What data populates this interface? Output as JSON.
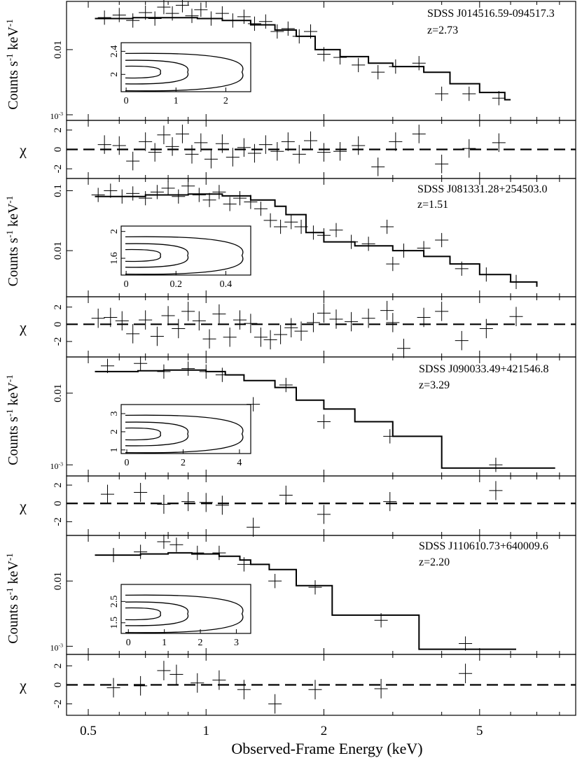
{
  "figure": {
    "xlabel": "Observed-Frame Energy (keV)",
    "xticks": [
      "0.5",
      "1",
      "2",
      "5"
    ],
    "spec_ylabel_main": "Counts s",
    "spec_ylabel_sup1": "-1",
    "spec_ylabel_mid": " keV",
    "spec_ylabel_sup2": "-1",
    "chi_ylabel": "χ",
    "exp_base": "10",
    "exp_sup": "-3"
  },
  "chart_data": [
    {
      "type": "line",
      "panel": "spectrum",
      "source": "SDSS J014516.59-094517.3",
      "redshift": "z=2.73",
      "xscale": "log",
      "yscale": "log",
      "xlim": [
        0.44,
        8.8
      ],
      "ylim": [
        0.00082,
        0.055
      ],
      "yticks": [
        {
          "v": 0.01,
          "label": "0.01"
        },
        {
          "v": 0.001,
          "label": "10^-3"
        }
      ],
      "model": [
        {
          "e": 0.52,
          "c": 0.03
        },
        {
          "e": 0.65,
          "c": 0.031
        },
        {
          "e": 0.8,
          "c": 0.031
        },
        {
          "e": 0.95,
          "c": 0.03
        },
        {
          "e": 1.1,
          "c": 0.028
        },
        {
          "e": 1.3,
          "c": 0.024
        },
        {
          "e": 1.5,
          "c": 0.02
        },
        {
          "e": 1.7,
          "c": 0.016
        },
        {
          "e": 1.9,
          "c": 0.01
        },
        {
          "e": 2.2,
          "c": 0.0078
        },
        {
          "e": 2.6,
          "c": 0.0062
        },
        {
          "e": 3.0,
          "c": 0.0055
        },
        {
          "e": 3.6,
          "c": 0.0045
        },
        {
          "e": 4.2,
          "c": 0.003
        },
        {
          "e": 5.0,
          "c": 0.0022
        },
        {
          "e": 5.8,
          "c": 0.0017
        },
        {
          "e": 6.0,
          "c": 0.0017
        }
      ],
      "points": [
        {
          "e": 0.55,
          "c": 0.031
        },
        {
          "e": 0.6,
          "c": 0.034
        },
        {
          "e": 0.65,
          "c": 0.028
        },
        {
          "e": 0.7,
          "c": 0.037
        },
        {
          "e": 0.74,
          "c": 0.03
        },
        {
          "e": 0.78,
          "c": 0.045
        },
        {
          "e": 0.82,
          "c": 0.036
        },
        {
          "e": 0.87,
          "c": 0.048
        },
        {
          "e": 0.92,
          "c": 0.033
        },
        {
          "e": 0.97,
          "c": 0.041
        },
        {
          "e": 1.03,
          "c": 0.03
        },
        {
          "e": 1.1,
          "c": 0.036
        },
        {
          "e": 1.17,
          "c": 0.028
        },
        {
          "e": 1.25,
          "c": 0.032
        },
        {
          "e": 1.33,
          "c": 0.025
        },
        {
          "e": 1.42,
          "c": 0.027
        },
        {
          "e": 1.52,
          "c": 0.019
        },
        {
          "e": 1.62,
          "c": 0.021
        },
        {
          "e": 1.73,
          "c": 0.016
        },
        {
          "e": 1.85,
          "c": 0.019
        },
        {
          "e": 2.0,
          "c": 0.0085
        },
        {
          "e": 2.2,
          "c": 0.0076
        },
        {
          "e": 2.45,
          "c": 0.0058
        },
        {
          "e": 2.75,
          "c": 0.0045
        },
        {
          "e": 3.05,
          "c": 0.0055
        },
        {
          "e": 3.5,
          "c": 0.0062
        },
        {
          "e": 4.0,
          "c": 0.0021
        },
        {
          "e": 4.7,
          "c": 0.0021
        },
        {
          "e": 5.6,
          "c": 0.0018
        }
      ],
      "inset": {
        "xlim": [
          -0.1,
          2.5
        ],
        "ylim": [
          1.7,
          2.55
        ],
        "xticks": [
          0,
          1,
          2
        ],
        "yticks": [
          2,
          2.4
        ]
      }
    },
    {
      "type": "scatter",
      "panel": "residuals",
      "source": "SDSS J014516.59-094517.3",
      "ylim": [
        -3.0,
        3.0
      ],
      "yticks": [
        2,
        0,
        -2
      ],
      "chi": [
        {
          "e": 0.55,
          "v": 0.5
        },
        {
          "e": 0.6,
          "v": 0.4
        },
        {
          "e": 0.65,
          "v": -1.2
        },
        {
          "e": 0.7,
          "v": 0.8
        },
        {
          "e": 0.74,
          "v": -0.3
        },
        {
          "e": 0.78,
          "v": 1.5
        },
        {
          "e": 0.82,
          "v": 0.3
        },
        {
          "e": 0.87,
          "v": 1.6
        },
        {
          "e": 0.92,
          "v": -0.5
        },
        {
          "e": 0.97,
          "v": 0.7
        },
        {
          "e": 1.03,
          "v": -1.0
        },
        {
          "e": 1.1,
          "v": 0.6
        },
        {
          "e": 1.17,
          "v": -0.8
        },
        {
          "e": 1.25,
          "v": 0.2
        },
        {
          "e": 1.33,
          "v": -0.4
        },
        {
          "e": 1.42,
          "v": 0.5
        },
        {
          "e": 1.52,
          "v": -0.2
        },
        {
          "e": 1.62,
          "v": 0.8
        },
        {
          "e": 1.73,
          "v": -0.5
        },
        {
          "e": 1.85,
          "v": 0.9
        },
        {
          "e": 2.0,
          "v": -0.3
        },
        {
          "e": 2.2,
          "v": -0.2
        },
        {
          "e": 2.45,
          "v": 0.4
        },
        {
          "e": 2.75,
          "v": -1.8
        },
        {
          "e": 3.05,
          "v": 0.8
        },
        {
          "e": 3.5,
          "v": 1.6
        },
        {
          "e": 4.0,
          "v": -1.5
        },
        {
          "e": 4.7,
          "v": 0.1
        },
        {
          "e": 5.6,
          "v": 0.7
        }
      ]
    },
    {
      "type": "line",
      "panel": "spectrum",
      "source": "SDSS J081331.28+254503.0",
      "redshift": "z=1.51",
      "xscale": "log",
      "yscale": "log",
      "xlim": [
        0.44,
        8.8
      ],
      "ylim": [
        0.0017,
        0.16
      ],
      "yticks": [
        {
          "v": 0.1,
          "label": "0.1"
        },
        {
          "v": 0.01,
          "label": "0.01"
        }
      ],
      "model": [
        {
          "e": 0.52,
          "c": 0.08
        },
        {
          "e": 0.7,
          "c": 0.085
        },
        {
          "e": 0.9,
          "c": 0.088
        },
        {
          "e": 1.1,
          "c": 0.082
        },
        {
          "e": 1.3,
          "c": 0.07
        },
        {
          "e": 1.5,
          "c": 0.055
        },
        {
          "e": 1.6,
          "c": 0.04
        },
        {
          "e": 1.8,
          "c": 0.02
        },
        {
          "e": 2.0,
          "c": 0.014
        },
        {
          "e": 2.4,
          "c": 0.012
        },
        {
          "e": 3.0,
          "c": 0.01
        },
        {
          "e": 3.6,
          "c": 0.008
        },
        {
          "e": 4.2,
          "c": 0.006
        },
        {
          "e": 5.0,
          "c": 0.004
        },
        {
          "e": 6.0,
          "c": 0.003
        },
        {
          "e": 7.0,
          "c": 0.0025
        }
      ],
      "points": [
        {
          "e": 0.53,
          "c": 0.085
        },
        {
          "e": 0.57,
          "c": 0.1
        },
        {
          "e": 0.61,
          "c": 0.08
        },
        {
          "e": 0.65,
          "c": 0.09
        },
        {
          "e": 0.7,
          "c": 0.075
        },
        {
          "e": 0.75,
          "c": 0.095
        },
        {
          "e": 0.8,
          "c": 0.11
        },
        {
          "e": 0.85,
          "c": 0.08
        },
        {
          "e": 0.9,
          "c": 0.12
        },
        {
          "e": 0.96,
          "c": 0.085
        },
        {
          "e": 1.02,
          "c": 0.07
        },
        {
          "e": 1.08,
          "c": 0.095
        },
        {
          "e": 1.15,
          "c": 0.06
        },
        {
          "e": 1.22,
          "c": 0.075
        },
        {
          "e": 1.3,
          "c": 0.065
        },
        {
          "e": 1.38,
          "c": 0.05
        },
        {
          "e": 1.46,
          "c": 0.032
        },
        {
          "e": 1.55,
          "c": 0.025
        },
        {
          "e": 1.65,
          "c": 0.03
        },
        {
          "e": 1.75,
          "c": 0.025
        },
        {
          "e": 1.88,
          "c": 0.02
        },
        {
          "e": 2.0,
          "c": 0.018
        },
        {
          "e": 2.15,
          "c": 0.022
        },
        {
          "e": 2.35,
          "c": 0.014
        },
        {
          "e": 2.6,
          "c": 0.013
        },
        {
          "e": 2.9,
          "c": 0.025
        },
        {
          "e": 3.2,
          "c": 0.01
        },
        {
          "e": 3.6,
          "c": 0.011
        },
        {
          "e": 4.0,
          "c": 0.015
        },
        {
          "e": 4.5,
          "c": 0.005
        },
        {
          "e": 5.2,
          "c": 0.004
        },
        {
          "e": 6.2,
          "c": 0.003
        },
        {
          "e": 3.0,
          "c": 0.006
        }
      ],
      "inset": {
        "xlim": [
          -0.02,
          0.5
        ],
        "ylim": [
          1.35,
          2.08
        ],
        "xticks": [
          0,
          0.2,
          0.4
        ],
        "yticks": [
          1.6,
          2
        ]
      }
    },
    {
      "type": "scatter",
      "panel": "residuals",
      "source": "SDSS J081331.28+254503.0",
      "ylim": [
        -3.8,
        3.2
      ],
      "yticks": [
        2,
        0,
        -2
      ],
      "chi": [
        {
          "e": 0.53,
          "v": 0.7
        },
        {
          "e": 0.57,
          "v": 0.8
        },
        {
          "e": 0.61,
          "v": 0.4
        },
        {
          "e": 0.65,
          "v": -1.1
        },
        {
          "e": 0.7,
          "v": 0.5
        },
        {
          "e": 0.75,
          "v": -1.4
        },
        {
          "e": 0.8,
          "v": 1.0
        },
        {
          "e": 0.85,
          "v": -0.5
        },
        {
          "e": 0.9,
          "v": 1.5
        },
        {
          "e": 0.96,
          "v": 0.4
        },
        {
          "e": 1.02,
          "v": -1.7
        },
        {
          "e": 1.08,
          "v": 1.2
        },
        {
          "e": 1.15,
          "v": -1.5
        },
        {
          "e": 1.22,
          "v": 0.5
        },
        {
          "e": 1.3,
          "v": 0.1
        },
        {
          "e": 1.38,
          "v": -1.5
        },
        {
          "e": 1.46,
          "v": -1.8
        },
        {
          "e": 1.55,
          "v": -1.2
        },
        {
          "e": 1.65,
          "v": -0.4
        },
        {
          "e": 1.75,
          "v": -0.8
        },
        {
          "e": 1.88,
          "v": 0.2
        },
        {
          "e": 2.0,
          "v": 1.3
        },
        {
          "e": 2.15,
          "v": 0.6
        },
        {
          "e": 2.35,
          "v": 0.3
        },
        {
          "e": 2.6,
          "v": 0.7
        },
        {
          "e": 2.9,
          "v": 1.6
        },
        {
          "e": 3.2,
          "v": -2.8
        },
        {
          "e": 3.6,
          "v": 0.8
        },
        {
          "e": 4.0,
          "v": 1.5
        },
        {
          "e": 4.5,
          "v": -1.9
        },
        {
          "e": 5.2,
          "v": -0.5
        },
        {
          "e": 6.2,
          "v": 0.9
        },
        {
          "e": 3.0,
          "v": 0.2
        }
      ]
    },
    {
      "type": "line",
      "panel": "spectrum",
      "source": "SDSS J090033.49+421546.8",
      "redshift": "z=3.29",
      "xscale": "log",
      "yscale": "log",
      "xlim": [
        0.44,
        8.8
      ],
      "ylim": [
        0.0007,
        0.032
      ],
      "yticks": [
        {
          "v": 0.01,
          "label": "0.01"
        },
        {
          "v": 0.001,
          "label": "10^-3"
        }
      ],
      "model": [
        {
          "e": 0.52,
          "c": 0.02
        },
        {
          "e": 0.67,
          "c": 0.0205
        },
        {
          "e": 0.78,
          "c": 0.021
        },
        {
          "e": 0.9,
          "c": 0.021
        },
        {
          "e": 1.0,
          "c": 0.02
        },
        {
          "e": 1.12,
          "c": 0.018
        },
        {
          "e": 1.25,
          "c": 0.015
        },
        {
          "e": 1.5,
          "c": 0.012
        },
        {
          "e": 1.7,
          "c": 0.008
        },
        {
          "e": 2.0,
          "c": 0.006
        },
        {
          "e": 2.4,
          "c": 0.004
        },
        {
          "e": 3.0,
          "c": 0.0025
        },
        {
          "e": 4.0,
          "c": 0.0009
        },
        {
          "e": 7.8,
          "c": 0.0009
        }
      ],
      "points": [
        {
          "e": 0.56,
          "c": 0.024
        },
        {
          "e": 0.68,
          "c": 0.026
        },
        {
          "e": 0.78,
          "c": 0.02
        },
        {
          "e": 0.9,
          "c": 0.022
        },
        {
          "e": 1.0,
          "c": 0.02
        },
        {
          "e": 1.1,
          "c": 0.018
        },
        {
          "e": 1.32,
          "c": 0.007
        },
        {
          "e": 1.6,
          "c": 0.013
        },
        {
          "e": 2.0,
          "c": 0.004
        },
        {
          "e": 2.95,
          "c": 0.0025
        },
        {
          "e": 5.5,
          "c": 0.001
        }
      ],
      "inset": {
        "xlim": [
          -0.2,
          4.4
        ],
        "ylim": [
          0.8,
          3.5
        ],
        "xticks": [
          0,
          2,
          4
        ],
        "yticks": [
          1,
          2,
          3
        ]
      }
    },
    {
      "type": "scatter",
      "panel": "residuals",
      "source": "SDSS J090033.49+421546.8",
      "ylim": [
        -3.5,
        3.0
      ],
      "yticks": [
        2,
        0,
        -2
      ],
      "chi": [
        {
          "e": 0.56,
          "v": 1.0
        },
        {
          "e": 0.68,
          "v": 1.2
        },
        {
          "e": 0.78,
          "v": -0.1
        },
        {
          "e": 0.9,
          "v": 0.2
        },
        {
          "e": 1.0,
          "v": 0.1
        },
        {
          "e": 1.1,
          "v": -0.2
        },
        {
          "e": 1.32,
          "v": -2.6
        },
        {
          "e": 1.6,
          "v": 0.9
        },
        {
          "e": 2.0,
          "v": -1.2
        },
        {
          "e": 2.95,
          "v": 0.2
        },
        {
          "e": 5.5,
          "v": 1.4
        }
      ]
    },
    {
      "type": "line",
      "panel": "spectrum",
      "source": "SDSS J110610.73+640009.6",
      "redshift": "z=2.20",
      "xscale": "log",
      "yscale": "log",
      "xlim": [
        0.44,
        8.8
      ],
      "ylim": [
        0.00075,
        0.05
      ],
      "yticks": [
        {
          "v": 0.01,
          "label": "0.01"
        },
        {
          "v": 0.001,
          "label": "10^-3"
        }
      ],
      "model": [
        {
          "e": 0.52,
          "c": 0.025
        },
        {
          "e": 0.68,
          "c": 0.026
        },
        {
          "e": 0.8,
          "c": 0.027
        },
        {
          "e": 0.92,
          "c": 0.026
        },
        {
          "e": 1.08,
          "c": 0.024
        },
        {
          "e": 1.22,
          "c": 0.021
        },
        {
          "e": 1.3,
          "c": 0.018
        },
        {
          "e": 1.45,
          "c": 0.015
        },
        {
          "e": 1.7,
          "c": 0.0085
        },
        {
          "e": 2.1,
          "c": 0.003
        },
        {
          "e": 2.5,
          "c": 0.003
        },
        {
          "e": 3.5,
          "c": 0.0009
        },
        {
          "e": 6.2,
          "c": 0.0009
        }
      ],
      "points": [
        {
          "e": 0.58,
          "c": 0.025
        },
        {
          "e": 0.68,
          "c": 0.028
        },
        {
          "e": 0.78,
          "c": 0.04
        },
        {
          "e": 0.84,
          "c": 0.036
        },
        {
          "e": 0.95,
          "c": 0.027
        },
        {
          "e": 1.08,
          "c": 0.027
        },
        {
          "e": 1.25,
          "c": 0.018
        },
        {
          "e": 1.5,
          "c": 0.01
        },
        {
          "e": 1.9,
          "c": 0.008
        },
        {
          "e": 2.8,
          "c": 0.0025
        },
        {
          "e": 4.6,
          "c": 0.0011
        }
      ],
      "inset": {
        "xlim": [
          -0.2,
          3.4
        ],
        "ylim": [
          1.0,
          3.3
        ],
        "xticks": [
          0,
          1,
          2,
          3
        ],
        "yticks": [
          1.5,
          2.5
        ]
      }
    },
    {
      "type": "scatter",
      "panel": "residuals",
      "source": "SDSS J110610.73+640009.6",
      "ylim": [
        -3.2,
        3.2
      ],
      "yticks": [
        2,
        0,
        -2
      ],
      "chi": [
        {
          "e": 0.58,
          "v": -0.3
        },
        {
          "e": 0.68,
          "v": -0.1
        },
        {
          "e": 0.78,
          "v": 1.5
        },
        {
          "e": 0.84,
          "v": 1.1
        },
        {
          "e": 0.95,
          "v": 0.2
        },
        {
          "e": 1.08,
          "v": 0.5
        },
        {
          "e": 1.25,
          "v": -0.5
        },
        {
          "e": 1.5,
          "v": -2.0
        },
        {
          "e": 1.9,
          "v": -0.5
        },
        {
          "e": 2.8,
          "v": -0.4
        },
        {
          "e": 4.6,
          "v": 1.2
        }
      ]
    }
  ]
}
